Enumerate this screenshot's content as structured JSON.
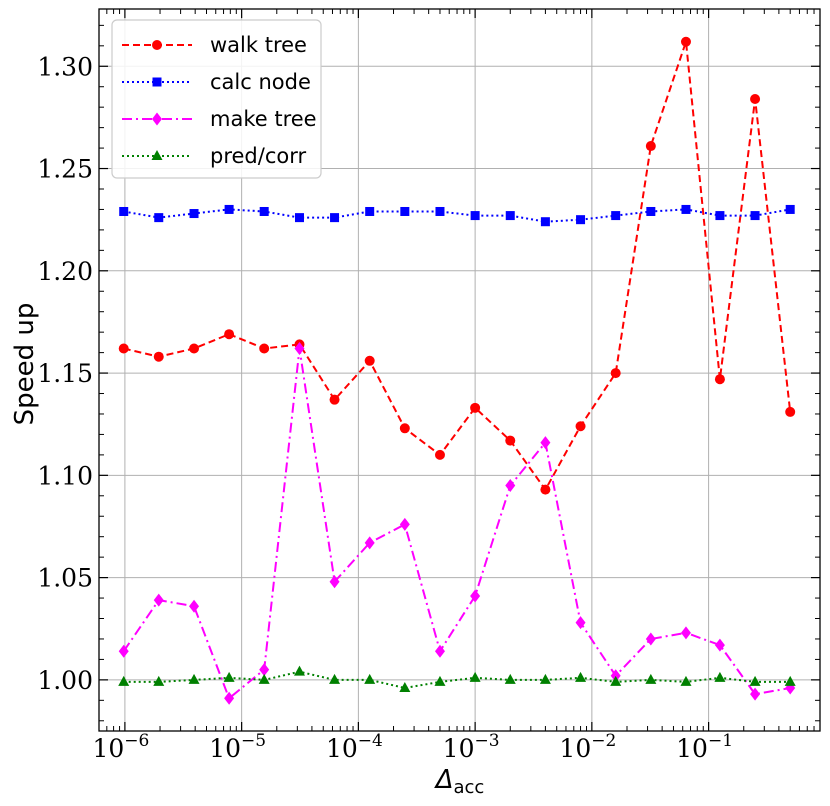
{
  "chart_data": {
    "type": "line",
    "xscale": "log",
    "xlabel_main": "Δ",
    "xlabel_sub": "acc",
    "ylabel": "Speed up",
    "xlim": [
      6e-07,
      0.9
    ],
    "ylim": [
      0.975,
      1.328
    ],
    "grid": true,
    "legend_position": "top-left",
    "xticks": [
      {
        "value": 1e-06,
        "base": "10",
        "exp": "−6"
      },
      {
        "value": 1e-05,
        "base": "10",
        "exp": "−5"
      },
      {
        "value": 0.0001,
        "base": "10",
        "exp": "−4"
      },
      {
        "value": 0.001,
        "base": "10",
        "exp": "−3"
      },
      {
        "value": 0.01,
        "base": "10",
        "exp": "−2"
      },
      {
        "value": 0.1,
        "base": "10",
        "exp": "−1"
      }
    ],
    "yticks": [
      {
        "value": 1.0,
        "label": "1.00"
      },
      {
        "value": 1.05,
        "label": "1.05"
      },
      {
        "value": 1.1,
        "label": "1.10"
      },
      {
        "value": 1.15,
        "label": "1.15"
      },
      {
        "value": 1.2,
        "label": "1.20"
      },
      {
        "value": 1.25,
        "label": "1.25"
      },
      {
        "value": 1.3,
        "label": "1.30"
      }
    ],
    "x": [
      9.77e-07,
      1.95e-06,
      3.91e-06,
      7.81e-06,
      1.56e-05,
      3.13e-05,
      6.25e-05,
      0.000125,
      0.00025,
      0.0005,
      0.001,
      0.002,
      0.004,
      0.008,
      0.016,
      0.032,
      0.064,
      0.125,
      0.25,
      0.5
    ],
    "series": [
      {
        "name": "walk tree",
        "color": "#ff0000",
        "dash": "7,4",
        "marker": "circle",
        "values": [
          1.162,
          1.158,
          1.162,
          1.169,
          1.162,
          1.164,
          1.137,
          1.156,
          1.123,
          1.11,
          1.133,
          1.117,
          1.093,
          1.124,
          1.15,
          1.261,
          1.312,
          1.147,
          1.284,
          1.131
        ]
      },
      {
        "name": "calc node",
        "color": "#0000ff",
        "dash": "2,3",
        "marker": "square",
        "values": [
          1.229,
          1.226,
          1.228,
          1.23,
          1.229,
          1.226,
          1.226,
          1.229,
          1.229,
          1.229,
          1.227,
          1.227,
          1.224,
          1.225,
          1.227,
          1.229,
          1.23,
          1.227,
          1.227,
          1.23
        ]
      },
      {
        "name": "make tree",
        "color": "#ff00ff",
        "dash": "10,4,2,4",
        "marker": "diamond",
        "values": [
          1.014,
          1.039,
          1.036,
          0.991,
          1.005,
          1.162,
          1.048,
          1.067,
          1.076,
          1.014,
          1.041,
          1.095,
          1.116,
          1.028,
          1.002,
          1.02,
          1.023,
          1.017,
          0.993,
          0.996
        ]
      },
      {
        "name": "pred/corr",
        "color": "#008000",
        "dash": "2,3",
        "marker": "triangle",
        "values": [
          0.999,
          0.999,
          1.0,
          1.001,
          1.0,
          1.004,
          1.0,
          1.0,
          0.996,
          0.999,
          1.001,
          1.0,
          1.0,
          1.001,
          0.999,
          1.0,
          0.999,
          1.001,
          0.999,
          0.999
        ]
      }
    ]
  }
}
